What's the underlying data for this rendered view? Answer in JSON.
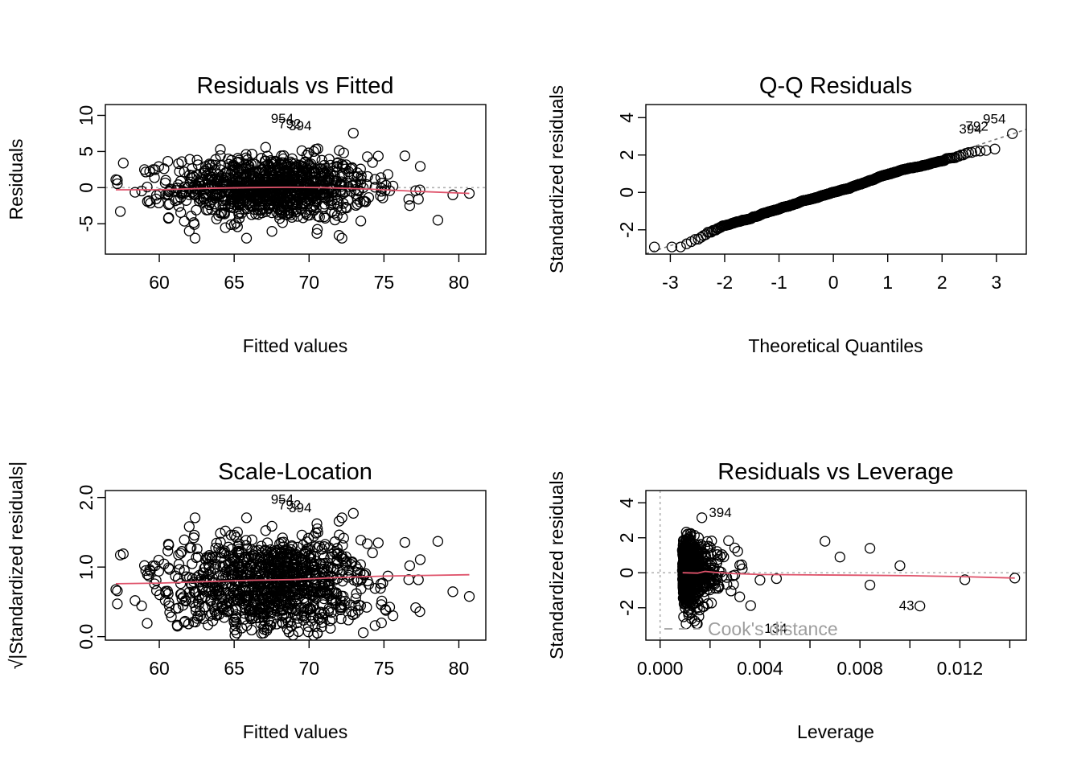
{
  "colors": {
    "smooth": "#DF536B",
    "points": "#000000",
    "reference": "#AAAAAA",
    "cooks": "#9E9E9E"
  },
  "chart_data": [
    {
      "type": "scatter",
      "title": "Residuals vs Fitted",
      "xlabel": "Fitted values",
      "ylabel": "Residuals",
      "xlim": [
        56.4,
        81.8
      ],
      "ylim": [
        -9.2,
        11.5
      ],
      "xticks": [
        "60",
        "65",
        "70",
        "75",
        "80"
      ],
      "yticks": [
        "-5",
        "0",
        "5",
        "10"
      ],
      "reference_line": {
        "type": "horizontal",
        "value": 0
      },
      "smooth_line": {
        "x": [
          57.1,
          60,
          63,
          66,
          68.5,
          71,
          74,
          77,
          80.7
        ],
        "y": [
          -0.3,
          -0.3,
          -0.1,
          0.0,
          0.05,
          0.0,
          -0.2,
          -0.5,
          -0.8
        ]
      },
      "labeled_points": [
        {
          "label": "954",
          "x": 69.4,
          "y": 9.6
        },
        {
          "label": "792",
          "x": 69.9,
          "y": 8.9
        },
        {
          "label": "394",
          "x": 70.6,
          "y": 8.6
        }
      ],
      "points_summary": "approximately 1000 points, fitted values mostly 60-75, residuals roughly -6 to 8"
    },
    {
      "type": "scatter",
      "title": "Q-Q Residuals",
      "xlabel": "Theoretical Quantiles",
      "ylabel": "Standardized residuals",
      "xlim": [
        -3.45,
        3.55
      ],
      "ylim": [
        -3.3,
        4.7
      ],
      "xticks": [
        "-3",
        "-2",
        "-1",
        "0",
        "1",
        "2",
        "3"
      ],
      "yticks": [
        "-2",
        "0",
        "2",
        "4"
      ],
      "reference_line": {
        "type": "qq",
        "intercept": 0.0,
        "slope": 0.95
      },
      "labeled_points": [
        {
          "label": "954",
          "x": 3.29,
          "y": 3.95
        },
        {
          "label": "792",
          "x": 2.97,
          "y": 3.55
        },
        {
          "label": "394",
          "x": 2.85,
          "y": 3.4
        }
      ],
      "points_summary": "approximately 1000 points following the reference line from (-3.3,-3.0) to (3.3,4.0)"
    },
    {
      "type": "scatter",
      "title": "Scale-Location",
      "xlabel": "Fitted values",
      "ylabel": "√|Standardized residuals|",
      "xlim": [
        56.4,
        81.8
      ],
      "ylim": [
        -0.05,
        2.1
      ],
      "xticks": [
        "60",
        "65",
        "70",
        "75",
        "80"
      ],
      "yticks": [
        "0.0",
        "1.0",
        "2.0"
      ],
      "smooth_line": {
        "x": [
          57.1,
          60,
          63,
          66,
          69,
          72,
          75,
          78,
          80.7
        ],
        "y": [
          0.76,
          0.77,
          0.79,
          0.81,
          0.82,
          0.85,
          0.87,
          0.88,
          0.89
        ]
      },
      "labeled_points": [
        {
          "label": "954",
          "x": 69.4,
          "y": 1.98
        },
        {
          "label": "792",
          "x": 69.9,
          "y": 1.9
        },
        {
          "label": "394",
          "x": 70.6,
          "y": 1.86
        }
      ],
      "points_summary": "approximately 1000 points, values roughly 0.05 to 2.0"
    },
    {
      "type": "scatter",
      "title": "Residuals vs Leverage",
      "xlabel": "Leverage",
      "ylabel": "Standardized residuals",
      "xlim": [
        -0.00057,
        0.01466
      ],
      "ylim": [
        -3.85,
        4.7
      ],
      "xticks": [
        "0.000",
        "0.004",
        "0.008",
        "0.012"
      ],
      "yticks": [
        "-2",
        "0",
        "2",
        "4"
      ],
      "reference_lines": [
        {
          "type": "horizontal",
          "value": 0
        },
        {
          "type": "vertical",
          "value": 0
        }
      ],
      "smooth_line": {
        "x": [
          0.0009,
          0.0015,
          0.0018,
          0.0022,
          0.003,
          0.004,
          0.006,
          0.008,
          0.01,
          0.012,
          0.0142
        ],
        "y": [
          0.0,
          -0.02,
          0.08,
          0.02,
          -0.05,
          -0.1,
          -0.12,
          -0.14,
          -0.17,
          -0.22,
          -0.3
        ]
      },
      "labeled_points": [
        {
          "label": "394",
          "x": 0.00163,
          "y": 3.45
        },
        {
          "label": "43",
          "x": 0.01043,
          "y": -1.85
        },
        {
          "label": "134",
          "x": 0.00385,
          "y": -2.8
        }
      ],
      "legend": {
        "label": "Cook's distance",
        "placement": "bottom-left"
      },
      "points_summary": "approximately 1000 points, leverage mostly 0.0009-0.006, a few up to 0.0142"
    }
  ]
}
